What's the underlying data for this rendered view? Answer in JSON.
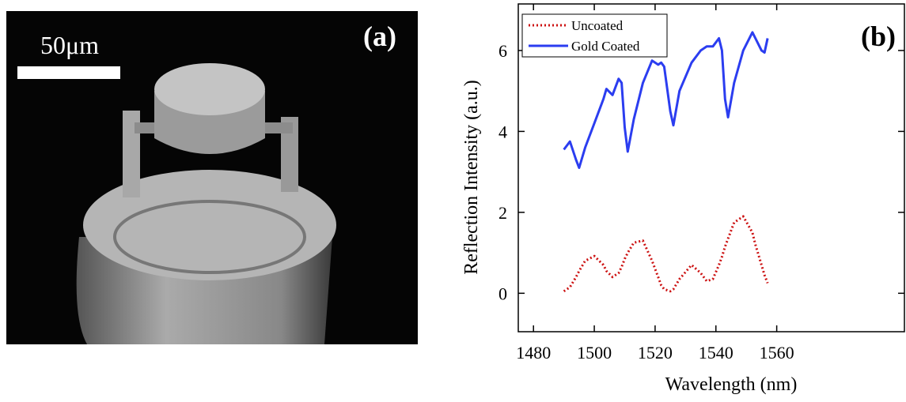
{
  "image_panel": {
    "label": "(a)",
    "scale_bar": "50μm"
  },
  "chart_data": {
    "type": "line",
    "panel_label": "(b)",
    "xlabel": "Wavelength (nm)",
    "ylabel": "Reflection Intensity (a.u.)",
    "x": [
      1490,
      1492,
      1494,
      1495,
      1497,
      1500,
      1503,
      1504,
      1506,
      1508,
      1509,
      1510,
      1511,
      1513,
      1516,
      1519,
      1521,
      1522,
      1523,
      1525,
      1526,
      1528,
      1532,
      1535,
      1537,
      1539,
      1541,
      1542,
      1543,
      1544,
      1546,
      1549,
      1552,
      1553,
      1555,
      1556,
      1557
    ],
    "series": [
      {
        "name": "Uncoated",
        "color": "#cc1111",
        "style": "dotted",
        "values": [
          0.05,
          0.15,
          0.4,
          0.55,
          0.8,
          0.92,
          0.7,
          0.55,
          0.4,
          0.5,
          0.65,
          0.85,
          1.0,
          1.25,
          1.3,
          0.8,
          0.4,
          0.2,
          0.1,
          0.05,
          0.1,
          0.35,
          0.7,
          0.5,
          0.3,
          0.35,
          0.7,
          0.9,
          1.15,
          1.35,
          1.75,
          1.9,
          1.5,
          1.2,
          0.7,
          0.45,
          0.25
        ]
      },
      {
        "name": "Gold Coated",
        "color": "#2b3df0",
        "style": "solid",
        "values": [
          3.55,
          3.75,
          3.3,
          3.1,
          3.6,
          4.2,
          4.8,
          5.05,
          4.9,
          5.3,
          5.2,
          4.1,
          3.5,
          4.3,
          5.2,
          5.75,
          5.65,
          5.7,
          5.6,
          4.5,
          4.15,
          5.0,
          5.7,
          6.0,
          6.1,
          6.1,
          6.3,
          6.0,
          4.8,
          4.35,
          5.2,
          6.0,
          6.45,
          6.3,
          6.0,
          5.95,
          6.3
        ]
      }
    ],
    "xlim": [
      1475,
      1602
    ],
    "ylim": [
      -0.95,
      7.15
    ],
    "xticks": [
      1480,
      1500,
      1520,
      1540,
      1560
    ],
    "yticks": [
      0,
      2,
      4,
      6
    ],
    "legend": "upper-left"
  }
}
